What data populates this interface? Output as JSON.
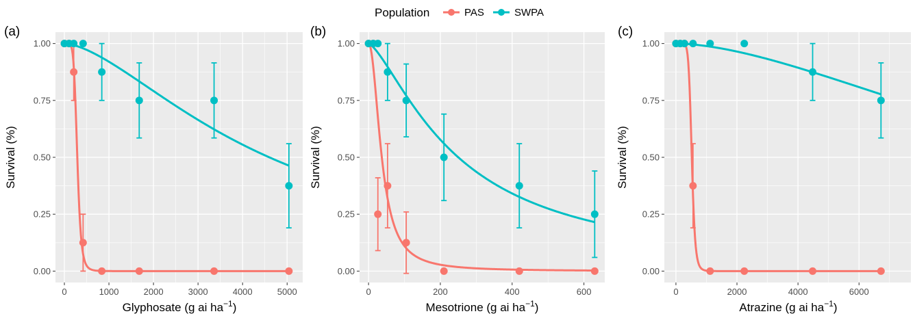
{
  "legend": {
    "title": "Population",
    "entries": [
      {
        "name": "PAS",
        "color": "#F8766D"
      },
      {
        "name": "SWPA",
        "color": "#00BFC4"
      }
    ]
  },
  "colors": {
    "panel_bg": "#EBEBEB",
    "grid": "#FFFFFF",
    "PAS": "#F8766D",
    "SWPA": "#00BFC4"
  },
  "chart_data": [
    {
      "type": "scatter",
      "panel_label": "(a)",
      "xlabel": "Glyphosate (g ai ha",
      "xlabel_sup": "−1",
      "xlabel_close": ")",
      "ylabel": "Survival (%)",
      "xlim": [
        -200,
        5350
      ],
      "ylim": [
        -0.05,
        1.05
      ],
      "xticks": [
        0,
        1000,
        2000,
        3000,
        4000,
        5000
      ],
      "yticks": [
        0.0,
        0.25,
        0.5,
        0.75,
        1.0
      ],
      "ytick_labels": [
        "0.00",
        "0.25",
        "0.50",
        "0.75",
        "1.00"
      ],
      "series": [
        {
          "name": "PAS",
          "points": [
            {
              "x": 0,
              "y": 1.0
            },
            {
              "x": 105,
              "y": 1.0
            },
            {
              "x": 210,
              "y": 0.875,
              "lo": 0.75,
              "hi": 1.0
            },
            {
              "x": 420,
              "y": 0.125,
              "lo": 0.0,
              "hi": 0.25
            },
            {
              "x": 840,
              "y": 0.0
            },
            {
              "x": 1680,
              "y": 0.0
            },
            {
              "x": 3360,
              "y": 0.0
            },
            {
              "x": 5040,
              "y": 0.0
            }
          ],
          "fit": {
            "ed50": 290,
            "slope": 6.8,
            "xmax": 5040
          }
        },
        {
          "name": "SWPA",
          "points": [
            {
              "x": 0,
              "y": 1.0
            },
            {
              "x": 105,
              "y": 1.0
            },
            {
              "x": 210,
              "y": 1.0
            },
            {
              "x": 420,
              "y": 1.0
            },
            {
              "x": 840,
              "y": 0.875,
              "lo": 0.75,
              "hi": 1.0
            },
            {
              "x": 1680,
              "y": 0.75,
              "lo": 0.585,
              "hi": 0.915
            },
            {
              "x": 3360,
              "y": 0.75,
              "lo": 0.585,
              "hi": 0.915
            },
            {
              "x": 5040,
              "y": 0.375,
              "lo": 0.19,
              "hi": 0.56
            }
          ],
          "fit": {
            "ed50": 4600,
            "slope": 1.6,
            "xmax": 5040
          }
        }
      ]
    },
    {
      "type": "scatter",
      "panel_label": "(b)",
      "xlabel": "Mesotrione (g ai ha",
      "xlabel_sup": "−1",
      "xlabel_close": ")",
      "ylabel": "Survival (%)",
      "xlim": [
        -25,
        658
      ],
      "ylim": [
        -0.05,
        1.05
      ],
      "xticks": [
        0,
        200,
        400,
        600
      ],
      "yticks": [
        0.0,
        0.25,
        0.5,
        0.75,
        1.0
      ],
      "ytick_labels": [
        "0.00",
        "0.25",
        "0.50",
        "0.75",
        "1.00"
      ],
      "series": [
        {
          "name": "PAS",
          "points": [
            {
              "x": 0,
              "y": 1.0
            },
            {
              "x": 13,
              "y": 1.0
            },
            {
              "x": 26,
              "y": 0.25,
              "lo": 0.09,
              "hi": 0.41
            },
            {
              "x": 53,
              "y": 0.375,
              "lo": 0.19,
              "hi": 0.56
            },
            {
              "x": 105,
              "y": 0.125,
              "lo": -0.01,
              "hi": 0.26
            },
            {
              "x": 210,
              "y": 0.0
            },
            {
              "x": 420,
              "y": 0.0
            },
            {
              "x": 630,
              "y": 0.0
            }
          ],
          "fit": {
            "ed50": 37,
            "slope": 2.1,
            "xmax": 630
          }
        },
        {
          "name": "SWPA",
          "points": [
            {
              "x": 0,
              "y": 1.0
            },
            {
              "x": 13,
              "y": 1.0
            },
            {
              "x": 26,
              "y": 1.0
            },
            {
              "x": 53,
              "y": 0.875,
              "lo": 0.75,
              "hi": 1.0
            },
            {
              "x": 105,
              "y": 0.75,
              "lo": 0.59,
              "hi": 0.91
            },
            {
              "x": 210,
              "y": 0.5,
              "lo": 0.31,
              "hi": 0.69
            },
            {
              "x": 420,
              "y": 0.375,
              "lo": 0.19,
              "hi": 0.56
            },
            {
              "x": 630,
              "y": 0.25,
              "lo": 0.06,
              "hi": 0.44
            }
          ],
          "fit": {
            "ed50": 250,
            "slope": 1.4,
            "xmax": 630
          }
        }
      ]
    },
    {
      "type": "scatter",
      "panel_label": "(c)",
      "xlabel": "Atrazine (g ai ha",
      "xlabel_sup": "−1",
      "xlabel_close": ")",
      "ylabel": "Survival (%)",
      "xlim": [
        -380,
        7700
      ],
      "ylim": [
        -0.05,
        1.05
      ],
      "xticks": [
        0,
        2000,
        4000,
        6000
      ],
      "yticks": [
        0.0,
        0.25,
        0.5,
        0.75,
        1.0
      ],
      "ytick_labels": [
        "0.00",
        "0.25",
        "0.50",
        "0.75",
        "1.00"
      ],
      "series": [
        {
          "name": "PAS",
          "points": [
            {
              "x": 0,
              "y": 1.0
            },
            {
              "x": 140,
              "y": 1.0
            },
            {
              "x": 280,
              "y": 1.0
            },
            {
              "x": 560,
              "y": 0.375,
              "lo": 0.19,
              "hi": 0.56
            },
            {
              "x": 1120,
              "y": 0.0
            },
            {
              "x": 2240,
              "y": 0.0
            },
            {
              "x": 4480,
              "y": 0.0
            },
            {
              "x": 6720,
              "y": 0.0
            }
          ],
          "fit": {
            "ed50": 520,
            "slope": 9.5,
            "xmax": 6720
          }
        },
        {
          "name": "SWPA",
          "points": [
            {
              "x": 0,
              "y": 1.0
            },
            {
              "x": 140,
              "y": 1.0
            },
            {
              "x": 280,
              "y": 1.0
            },
            {
              "x": 560,
              "y": 1.0
            },
            {
              "x": 1120,
              "y": 1.0
            },
            {
              "x": 2240,
              "y": 1.0
            },
            {
              "x": 4480,
              "y": 0.875,
              "lo": 0.75,
              "hi": 1.0
            },
            {
              "x": 6720,
              "y": 0.75,
              "lo": 0.585,
              "hi": 0.915
            }
          ],
          "fit": {
            "ed50": 14000,
            "slope": 1.7,
            "xmax": 6720
          }
        }
      ]
    }
  ]
}
